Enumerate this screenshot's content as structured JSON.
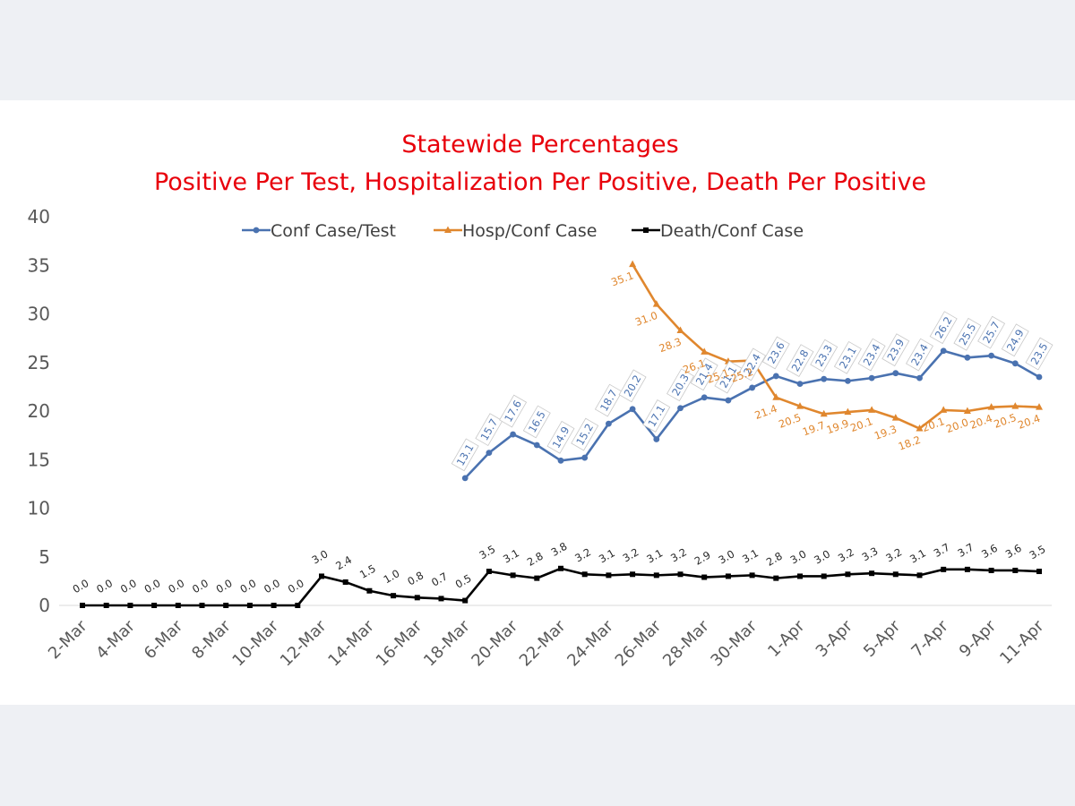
{
  "chart_data": {
    "type": "line",
    "title": "Statewide Percentages",
    "subtitle": "Positive Per Test, Hospitalization Per Positive, Death Per Positive",
    "xlabel": "",
    "ylabel": "",
    "ylim": [
      0,
      40
    ],
    "yticks": [
      0,
      5,
      10,
      15,
      20,
      25,
      30,
      35,
      40
    ],
    "grid": false,
    "legend_position": "top",
    "categories": [
      "2-Mar",
      "3-Mar",
      "4-Mar",
      "5-Mar",
      "6-Mar",
      "7-Mar",
      "8-Mar",
      "9-Mar",
      "10-Mar",
      "11-Mar",
      "12-Mar",
      "13-Mar",
      "14-Mar",
      "15-Mar",
      "16-Mar",
      "17-Mar",
      "18-Mar",
      "19-Mar",
      "20-Mar",
      "21-Mar",
      "22-Mar",
      "23-Mar",
      "24-Mar",
      "25-Mar",
      "26-Mar",
      "27-Mar",
      "28-Mar",
      "29-Mar",
      "30-Mar",
      "31-Mar",
      "1-Apr",
      "2-Apr",
      "3-Apr",
      "4-Apr",
      "5-Apr",
      "6-Apr",
      "7-Apr",
      "8-Apr",
      "9-Apr",
      "10-Apr",
      "11-Apr"
    ],
    "x_tick_labels": [
      "2-Mar",
      "4-Mar",
      "6-Mar",
      "8-Mar",
      "10-Mar",
      "12-Mar",
      "14-Mar",
      "16-Mar",
      "18-Mar",
      "20-Mar",
      "22-Mar",
      "24-Mar",
      "26-Mar",
      "28-Mar",
      "30-Mar",
      "1-Apr",
      "3-Apr",
      "5-Apr",
      "7-Apr",
      "9-Apr",
      "11-Apr"
    ],
    "series": [
      {
        "name": "Conf Case/Test",
        "color": "#4a72b0",
        "marker": "circle",
        "values": [
          null,
          null,
          null,
          null,
          null,
          null,
          null,
          null,
          null,
          null,
          null,
          null,
          null,
          null,
          null,
          null,
          13.1,
          15.7,
          17.6,
          16.5,
          14.9,
          15.2,
          18.7,
          20.2,
          17.1,
          20.3,
          21.4,
          21.1,
          22.4,
          23.6,
          22.8,
          23.3,
          23.1,
          23.4,
          23.9,
          23.4,
          26.2,
          25.5,
          25.7,
          24.9,
          23.5
        ]
      },
      {
        "name": "Hosp/Conf Case",
        "color": "#e0872e",
        "marker": "triangle",
        "values": [
          null,
          null,
          null,
          null,
          null,
          null,
          null,
          null,
          null,
          null,
          null,
          null,
          null,
          null,
          null,
          null,
          null,
          null,
          null,
          null,
          null,
          null,
          null,
          35.1,
          31.0,
          28.3,
          26.1,
          25.1,
          25.2,
          21.4,
          20.5,
          19.7,
          19.9,
          20.1,
          19.3,
          18.2,
          20.1,
          20.0,
          20.4,
          20.5,
          20.4
        ]
      },
      {
        "name": "Death/Conf Case",
        "color": "#000000",
        "marker": "square",
        "values": [
          0.0,
          0.0,
          0.0,
          0.0,
          0.0,
          0.0,
          0.0,
          0.0,
          0.0,
          0.0,
          3.0,
          2.4,
          1.5,
          1.0,
          0.8,
          0.7,
          0.5,
          3.5,
          3.1,
          2.8,
          3.8,
          3.2,
          3.1,
          3.2,
          3.1,
          3.2,
          2.9,
          3.0,
          3.1,
          2.8,
          3.0,
          3.0,
          3.2,
          3.3,
          3.2,
          3.1,
          3.7,
          3.7,
          3.6,
          3.6,
          3.5
        ]
      }
    ]
  }
}
